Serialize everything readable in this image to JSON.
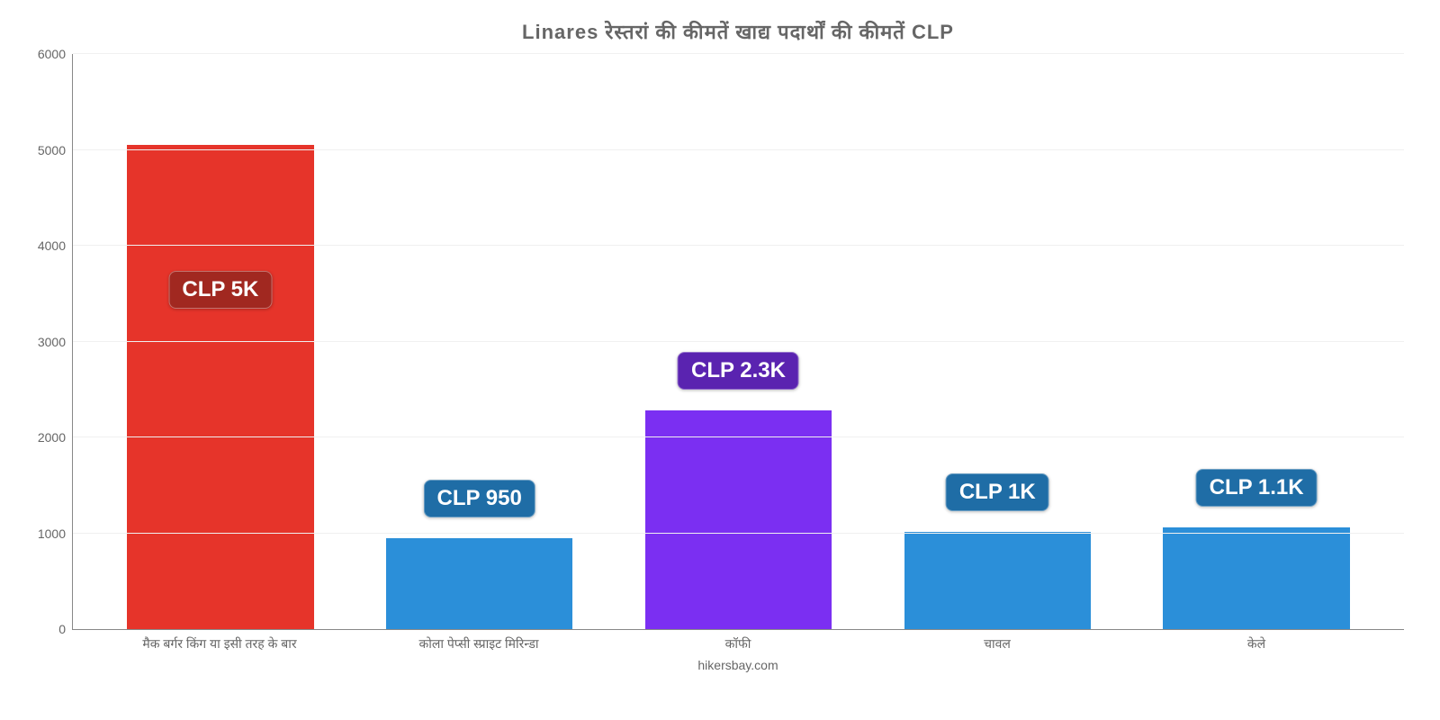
{
  "chart": {
    "type": "bar",
    "title": "Linares रेस्तरां की कीमतें खाद्य पदार्थों की कीमतें CLP",
    "title_fontsize": 22,
    "title_color": "#666666",
    "background_color": "#ffffff",
    "grid_color": "#f0f0f0",
    "axis_color": "#888888",
    "tick_label_color": "#666666",
    "tick_label_fontsize": 14,
    "ylim": [
      0,
      6000
    ],
    "ytick_step": 1000,
    "yticks": [
      "0",
      "1000",
      "2000",
      "3000",
      "4000",
      "5000",
      "6000"
    ],
    "bar_width": 0.72,
    "badge_fontsize": 24,
    "categories": [
      "मैक बर्गर किंग या इसी तरह के बार",
      "कोला पेप्सी स्प्राइट मिरिन्डा",
      "कॉफी",
      "चावल",
      "केले"
    ],
    "values": [
      5050,
      950,
      2280,
      1010,
      1060
    ],
    "value_labels": [
      "CLP 5K",
      "CLP 950",
      "CLP 2.3K",
      "CLP 1K",
      "CLP 1.1K"
    ],
    "bar_colors": [
      "#e6342a",
      "#2b8fd9",
      "#7b2ff2",
      "#2b8fd9",
      "#2b8fd9"
    ],
    "badge_colors": [
      "#a12820",
      "#1f6da6",
      "#5a23b0",
      "#1f6da6",
      "#1f6da6"
    ],
    "badge_offsets": [
      -140,
      65,
      65,
      65,
      65
    ],
    "footer": "hikersbay.com"
  }
}
